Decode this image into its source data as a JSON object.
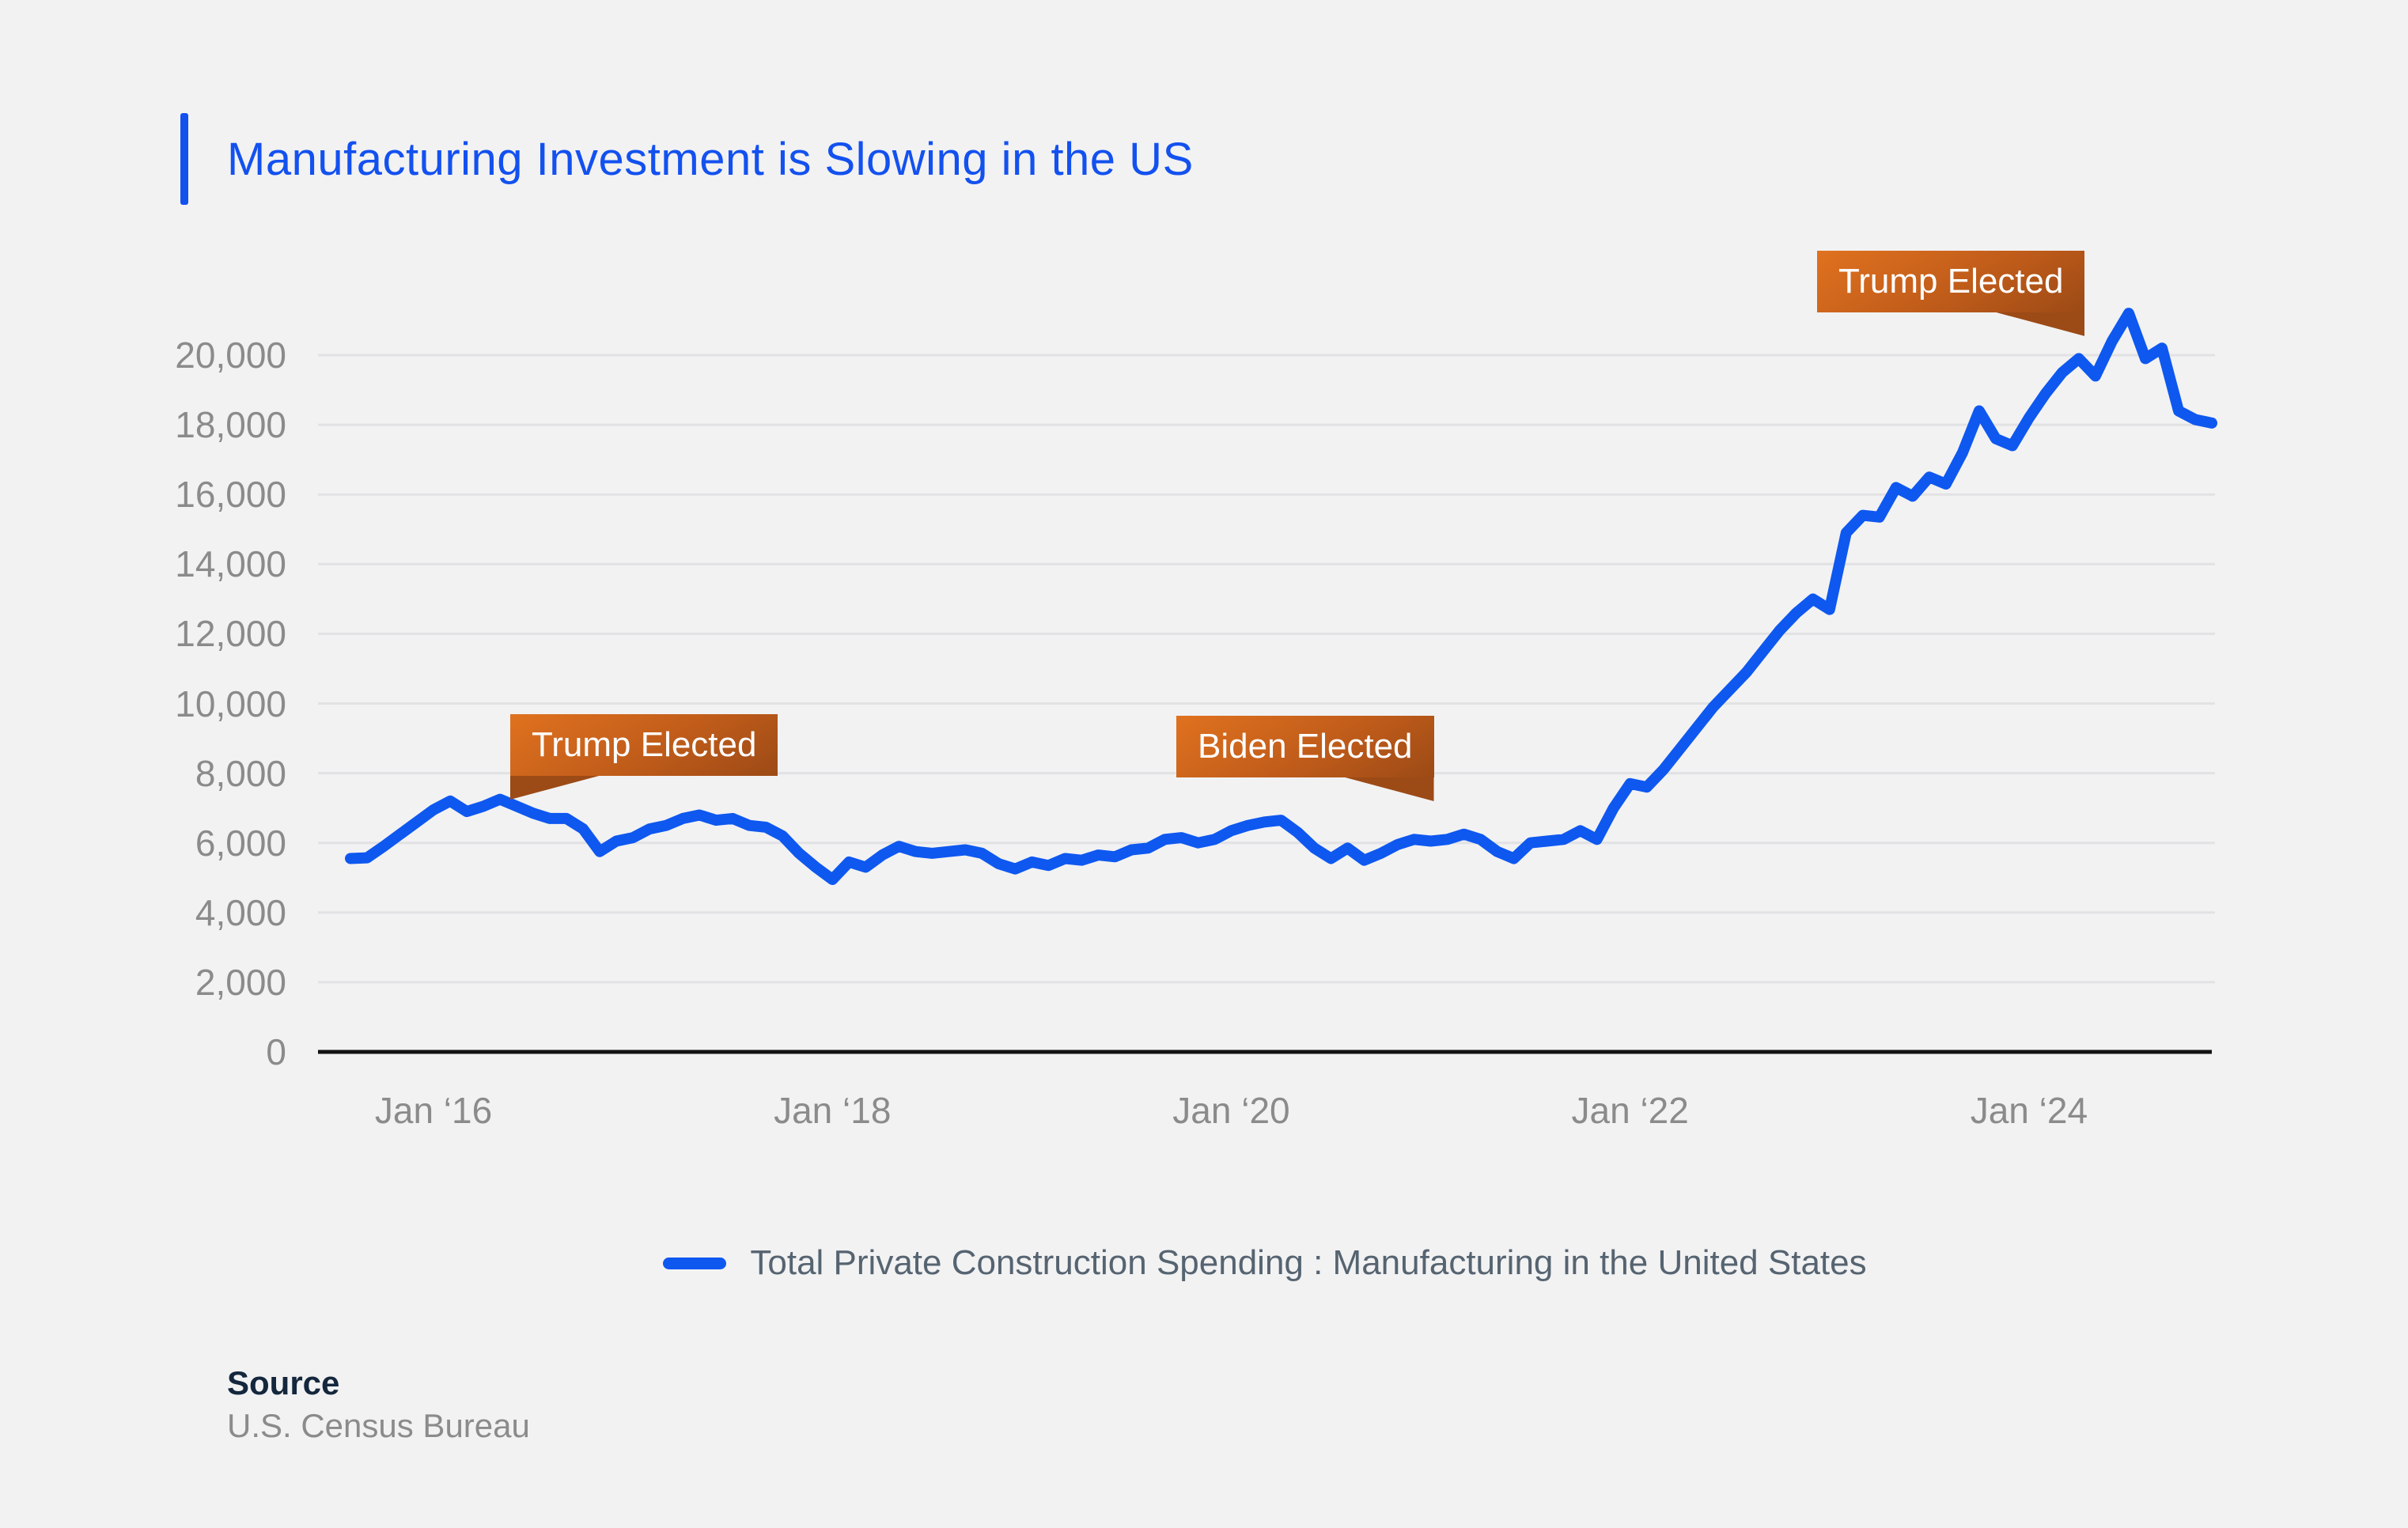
{
  "title": "Manufacturing Investment is Slowing in the US",
  "legend": {
    "series_label": "Total Private Construction Spending : Manufacturing in the United States"
  },
  "source": {
    "label": "Source",
    "value": "U.S. Census Bureau"
  },
  "annotations": [
    {
      "id": "trump-elected-2016",
      "label": "Trump Elected"
    },
    {
      "id": "biden-elected-2020",
      "label": "Biden Elected"
    },
    {
      "id": "trump-elected-2024",
      "label": "Trump Elected"
    }
  ],
  "colors": {
    "background": "#f2f2f3",
    "title_accent": "#1351ef",
    "line": "#0e58f0",
    "gridline": "#e2e2e4",
    "axis": "#121212",
    "tick_label": "#8b8b8b",
    "legend_text": "#566471",
    "badge_gradient_top": "#e0721f",
    "badge_gradient_bottom": "#9c4a16"
  },
  "chart_data": {
    "type": "line",
    "title": "Manufacturing Investment is Slowing in the US",
    "xlabel": "",
    "ylabel": "",
    "x_start_month": "2015-08",
    "x_frequency": "monthly",
    "ylim": [
      0,
      21500
    ],
    "grid": "horizontal",
    "legend_position": "bottom-center",
    "y_ticks": [
      {
        "label": "0",
        "value": 0
      },
      {
        "label": "2,000",
        "value": 2000
      },
      {
        "label": "4,000",
        "value": 4000
      },
      {
        "label": "6,000",
        "value": 6000
      },
      {
        "label": "8,000",
        "value": 8000
      },
      {
        "label": "10,000",
        "value": 10000
      },
      {
        "label": "12,000",
        "value": 12000
      },
      {
        "label": "14,000",
        "value": 14000
      },
      {
        "label": "16,000",
        "value": 16000
      },
      {
        "label": "18,000",
        "value": 18000
      },
      {
        "label": "20,000",
        "value": 20000
      }
    ],
    "x_ticks": [
      {
        "label": "Jan ‘16",
        "month_index": 5
      },
      {
        "label": "Jan ‘18",
        "month_index": 29
      },
      {
        "label": "Jan ‘20",
        "month_index": 53
      },
      {
        "label": "Jan ‘22",
        "month_index": 77
      },
      {
        "label": "Jan ‘24",
        "month_index": 101
      }
    ],
    "annotations": [
      {
        "label": "Trump Elected",
        "near_month": "2016-11"
      },
      {
        "label": "Biden Elected",
        "near_month": "2020-11"
      },
      {
        "label": "Trump Elected",
        "near_month": "2024-11"
      }
    ],
    "series": [
      {
        "name": "Total Private Construction Spending : Manufacturing in the United States",
        "values": [
          5550,
          5570,
          5900,
          6250,
          6600,
          6950,
          7200,
          6900,
          7050,
          7250,
          7050,
          6850,
          6700,
          6700,
          6400,
          5750,
          6050,
          6150,
          6400,
          6500,
          6700,
          6800,
          6650,
          6700,
          6500,
          6450,
          6200,
          5700,
          5300,
          4950,
          5450,
          5300,
          5650,
          5900,
          5750,
          5700,
          5750,
          5800,
          5700,
          5400,
          5250,
          5450,
          5350,
          5550,
          5500,
          5650,
          5600,
          5800,
          5850,
          6100,
          6150,
          6000,
          6100,
          6350,
          6500,
          6600,
          6650,
          6300,
          5850,
          5550,
          5850,
          5500,
          5700,
          5950,
          6100,
          6050,
          6100,
          6250,
          6100,
          5750,
          5550,
          6000,
          6050,
          6100,
          6350,
          6100,
          7000,
          7700,
          7600,
          8100,
          8700,
          9300,
          9900,
          10400,
          10900,
          11500,
          12100,
          12600,
          13000,
          12700,
          14900,
          15400,
          15350,
          16200,
          15950,
          16500,
          16300,
          17200,
          18400,
          17600,
          17400,
          18200,
          18900,
          19500,
          19900,
          19400,
          20400,
          21200,
          19900,
          20200,
          18400,
          18150,
          18050
        ]
      }
    ]
  }
}
